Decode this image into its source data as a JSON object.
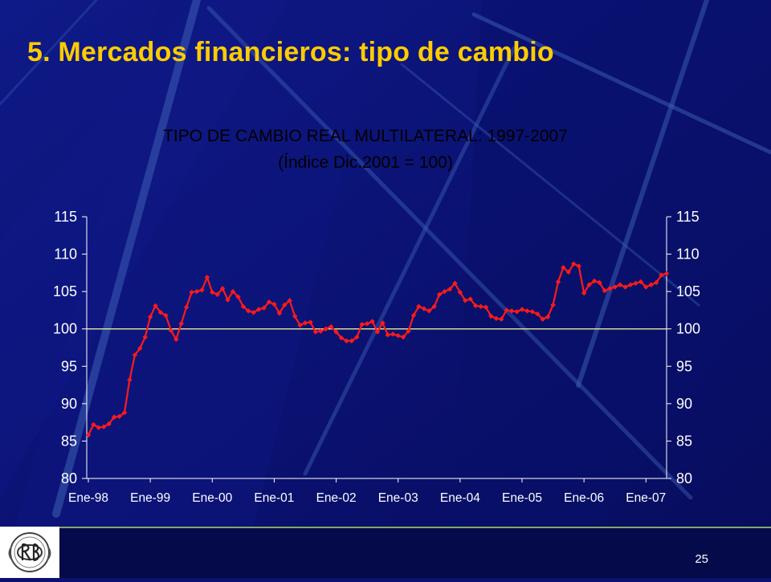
{
  "slide": {
    "title": "5.  Mercados financieros: tipo de cambio",
    "page_number": "25"
  },
  "colors": {
    "background": "#0b1170",
    "title": "#ffcc00",
    "series": "#ff1a1a",
    "reference_line": "#ffff99",
    "axis": "#ffffff"
  },
  "logo": {
    "icon": "bank-seal-icon"
  },
  "chart_data": {
    "type": "line",
    "title": "TIPO DE CAMBIO REAL MULTILATERAL: 1997-2007",
    "subtitle": "(Índice Dic.2001 = 100)",
    "xlabel": "",
    "ylabel": "",
    "x_tick_labels": [
      "Ene-98",
      "Ene-99",
      "Ene-00",
      "Ene-01",
      "Ene-02",
      "Ene-03",
      "Ene-04",
      "Ene-05",
      "Ene-06",
      "Ene-07"
    ],
    "y_ticks": [
      80,
      85,
      90,
      95,
      100,
      105,
      110,
      115
    ],
    "ylim": [
      80,
      115
    ],
    "secondary_y_axis": true,
    "reference_line": 100,
    "series": [
      {
        "start": "Ene-98",
        "frequency": "monthly",
        "values": [
          85.8,
          87.2,
          86.8,
          86.9,
          87.3,
          88.2,
          88.3,
          88.8,
          93.2,
          96.5,
          97.4,
          98.9,
          101.6,
          103.1,
          102.2,
          101.8,
          99.8,
          98.6,
          100.7,
          102.9,
          104.9,
          105.0,
          105.2,
          106.9,
          104.9,
          104.6,
          105.4,
          103.9,
          105.0,
          104.3,
          103.0,
          102.4,
          102.2,
          102.6,
          102.8,
          103.6,
          103.3,
          102.1,
          103.2,
          103.8,
          101.7,
          100.5,
          100.8,
          100.9,
          99.6,
          99.7,
          100.0,
          100.3,
          99.6,
          98.8,
          98.4,
          98.4,
          98.9,
          100.6,
          100.7,
          101.0,
          99.6,
          100.8,
          99.2,
          99.3,
          99.1,
          98.9,
          99.7,
          101.8,
          103.0,
          102.7,
          102.4,
          103.0,
          104.6,
          105.0,
          105.3,
          106.1,
          104.9,
          103.8,
          104.0,
          103.1,
          103.0,
          102.9,
          101.7,
          101.4,
          101.3,
          102.5,
          102.4,
          102.3,
          102.6,
          102.4,
          102.3,
          102.0,
          101.3,
          101.6,
          103.2,
          106.3,
          108.2,
          107.6,
          108.7,
          108.4,
          104.8,
          105.9,
          106.4,
          106.2,
          105.1,
          105.4,
          105.6,
          105.9,
          105.6,
          105.9,
          106.1,
          106.3,
          105.6,
          105.9,
          106.2,
          107.2,
          107.4
        ]
      }
    ]
  }
}
